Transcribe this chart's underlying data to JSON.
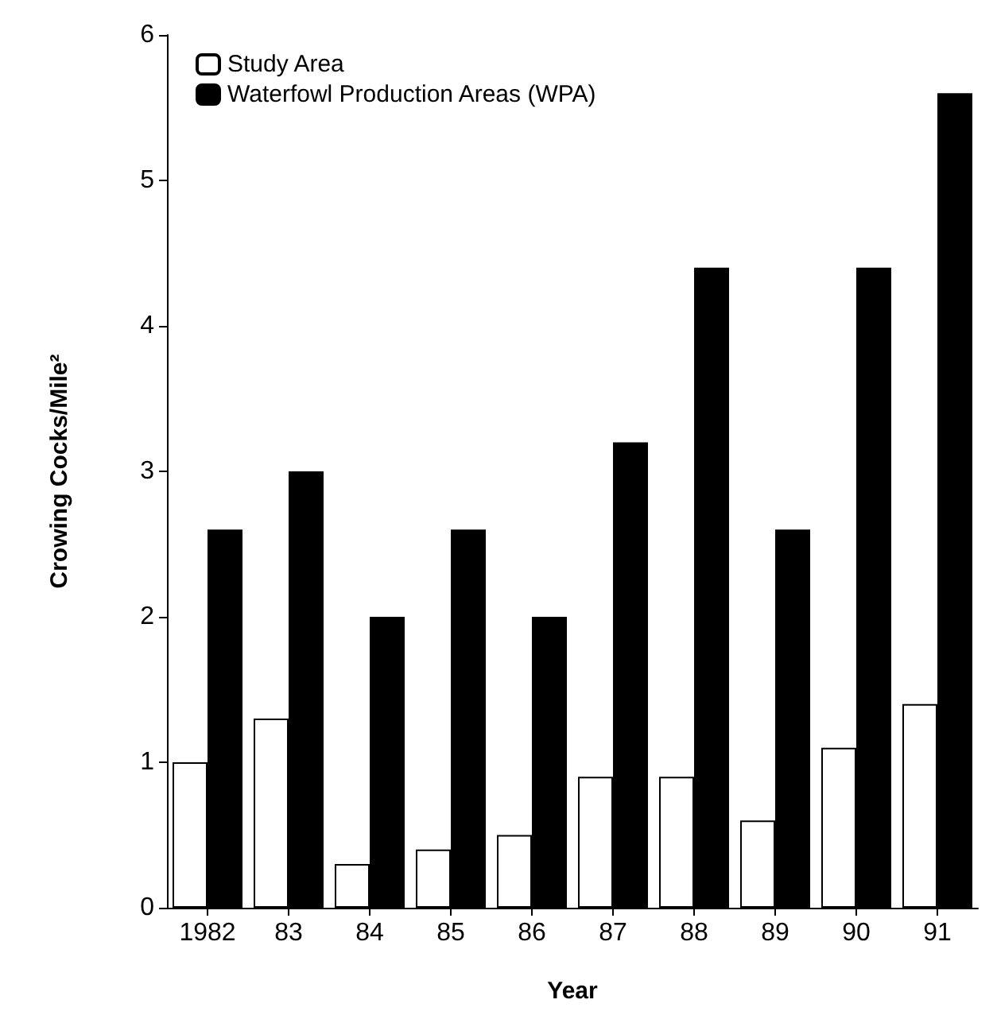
{
  "chart_data": {
    "type": "bar",
    "xlabel": "Year",
    "ylabel": "Crowing Cocks/Mile²",
    "categories": [
      "1982",
      "83",
      "84",
      "85",
      "86",
      "87",
      "88",
      "89",
      "90",
      "91"
    ],
    "series": [
      {
        "name": "Study Area",
        "color": "#ffffff",
        "values": [
          1.0,
          1.3,
          0.3,
          0.4,
          0.5,
          0.9,
          0.9,
          0.6,
          1.1,
          1.4
        ]
      },
      {
        "name": "Waterfowl Production Areas (WPA)",
        "color": "#000000",
        "values": [
          2.6,
          3.0,
          2.0,
          2.6,
          2.0,
          3.2,
          4.4,
          2.6,
          4.4,
          5.6
        ]
      }
    ],
    "ylim": [
      0,
      6
    ],
    "yticks": [
      0,
      1,
      2,
      3,
      4,
      5,
      6
    ],
    "grid": false,
    "legend": "top left"
  }
}
